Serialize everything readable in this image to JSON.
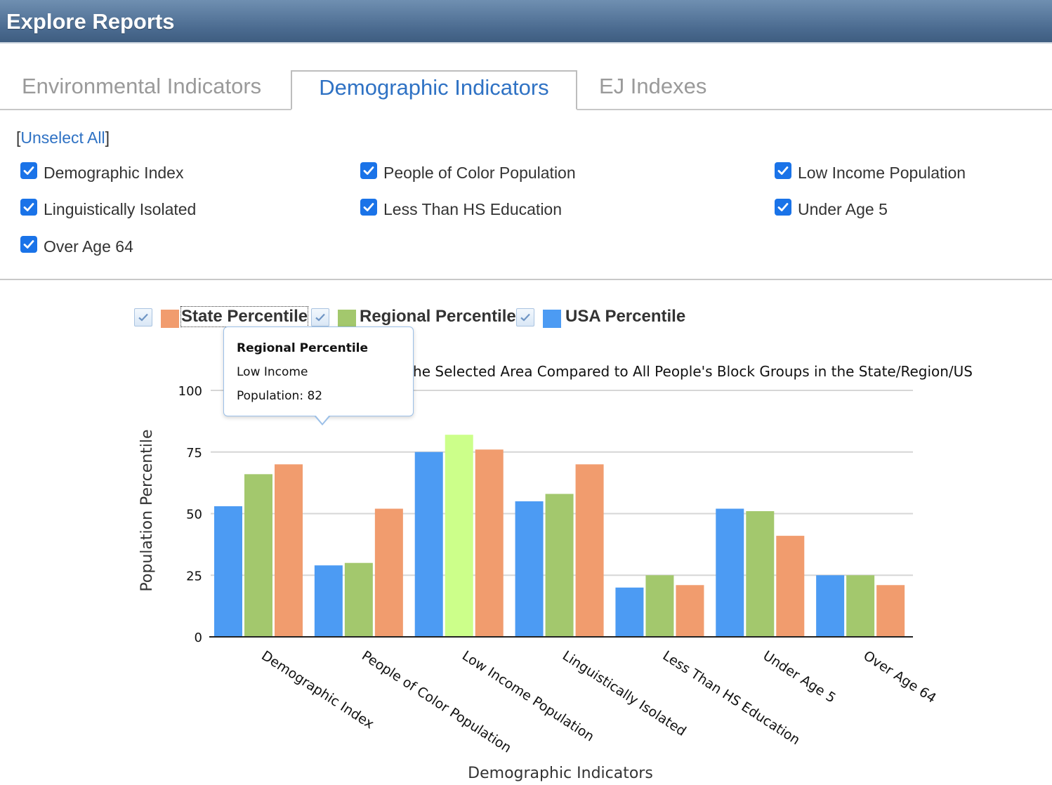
{
  "header": {
    "title": "Explore Reports"
  },
  "tabs": [
    {
      "label": "Environmental Indicators",
      "active": false
    },
    {
      "label": "Demographic Indicators",
      "active": true
    },
    {
      "label": "EJ Indexes",
      "active": false
    }
  ],
  "selection": {
    "unselect_all_label": "Unselect All",
    "options": [
      {
        "label": "Demographic Index",
        "checked": true
      },
      {
        "label": "People of Color Population",
        "checked": true
      },
      {
        "label": "Low Income Population",
        "checked": true
      },
      {
        "label": "Linguistically Isolated",
        "checked": true
      },
      {
        "label": "Less Than HS Education",
        "checked": true
      },
      {
        "label": "Under Age 5",
        "checked": true
      },
      {
        "label": "Over Age 64",
        "checked": true
      }
    ]
  },
  "tooltip": {
    "title": "Regional Percentile",
    "line1": "Low Income",
    "line2": "Population: 82"
  },
  "colors": {
    "state": "#f19c6e",
    "regional": "#a3c86d",
    "usa": "#4c9bf3",
    "regional_highlight": "#ccff8a",
    "tab_active": "#2f72c4",
    "checkbox": "#1a73e8"
  },
  "chart_data": {
    "type": "bar",
    "title": "r the Selected Area Compared to All People's Block Groups in the State/Region/US",
    "xlabel": "Demographic Indicators",
    "ylabel": "Population Percentile",
    "ylim": [
      0,
      100
    ],
    "yticks": [
      0,
      25,
      50,
      75,
      100
    ],
    "grid": true,
    "legend_position": "top",
    "categories": [
      "Demographic Index",
      "People of Color Population",
      "Low Income Population",
      "Linguistically Isolated",
      "Less Than HS Education",
      "Under Age 5",
      "Over Age 64"
    ],
    "series": [
      {
        "name": "USA Percentile",
        "color": "#4c9bf3",
        "values": [
          53,
          29,
          75,
          55,
          20,
          52,
          25
        ]
      },
      {
        "name": "Regional Percentile",
        "color": "#a3c86d",
        "values": [
          66,
          30,
          82,
          58,
          25,
          51,
          25
        ]
      },
      {
        "name": "State Percentile",
        "color": "#f19c6e",
        "values": [
          70,
          52,
          76,
          70,
          21,
          41,
          21
        ]
      }
    ],
    "legend_order": [
      "State Percentile",
      "Regional Percentile",
      "USA Percentile"
    ],
    "highlighted": {
      "series": "Regional Percentile",
      "category": "Low Income Population"
    }
  }
}
